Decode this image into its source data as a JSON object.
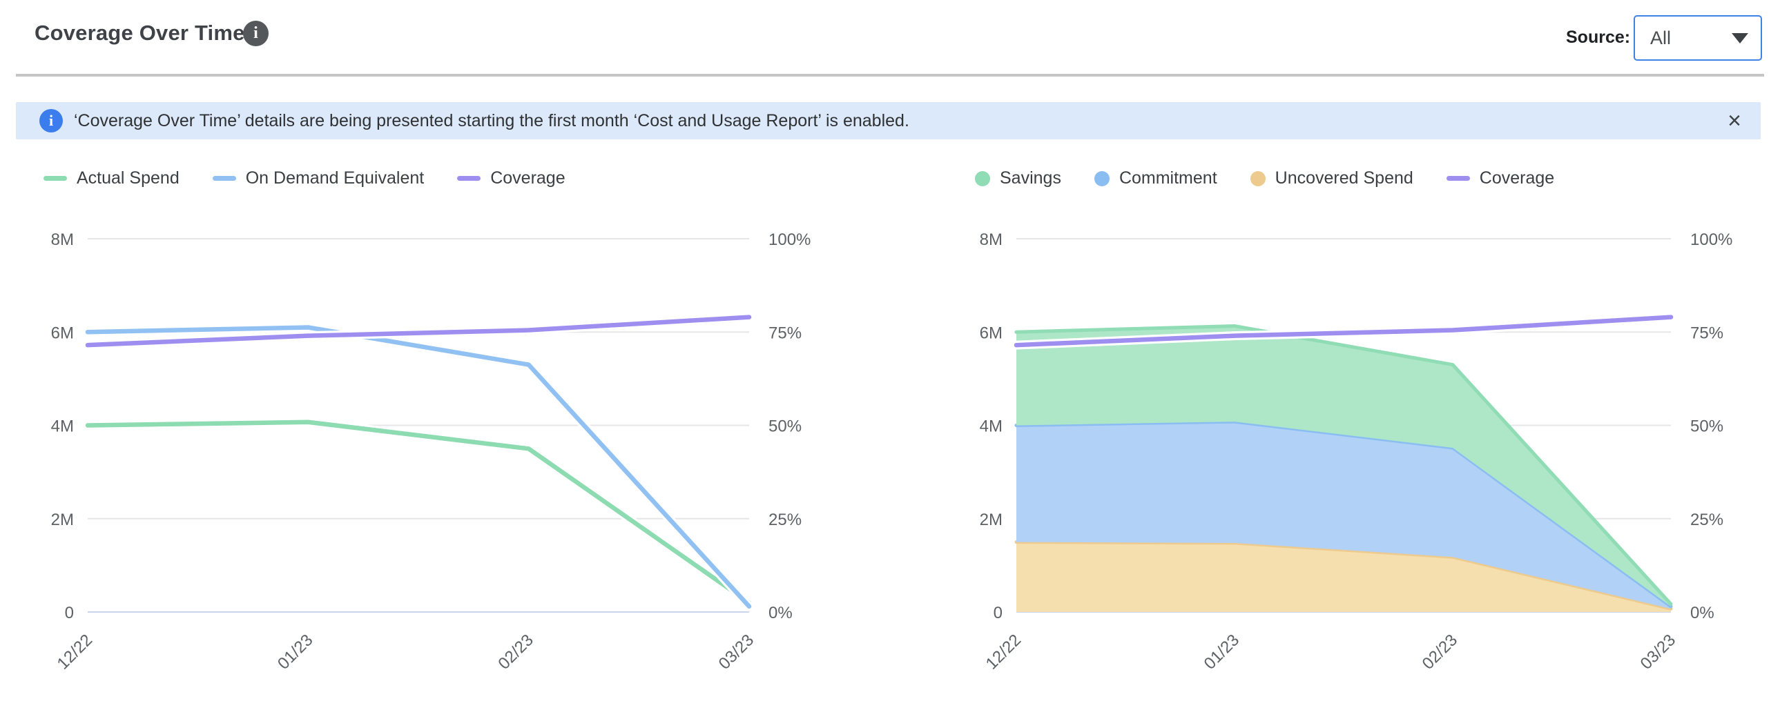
{
  "header": {
    "title": "Coverage Over Time",
    "info_glyph": "i",
    "source_label": "Source:",
    "source_value": "All"
  },
  "banner": {
    "icon_glyph": "i",
    "text": "‘Coverage Over Time’ details are being presented starting the first month ‘Cost and Usage Report’ is enabled.",
    "close_glyph": "×"
  },
  "ui_colors": {
    "banner_bg": "#dce9fb",
    "banner_icon": "#3b7ded",
    "dropdown_border": "#3f82e6",
    "divider": "#c5c5c5",
    "title_info_icon_bg": "#55585a",
    "gridline": "#e6e6e8",
    "zero_line": "#c9d5ed",
    "axis_text": "#5d6165"
  },
  "chart_data": [
    {
      "type": "line",
      "x": [
        "12/22",
        "01/23",
        "02/23",
        "03/23"
      ],
      "x_label_rotation": -45,
      "grid": "horizontal",
      "legend_position": "top-left",
      "left_axis": {
        "ticks": [
          "0",
          "2M",
          "4M",
          "6M",
          "8M"
        ],
        "range": [
          0,
          8
        ],
        "units": "millions"
      },
      "right_axis": {
        "ticks": [
          "0%",
          "25%",
          "50%",
          "75%",
          "100%"
        ],
        "range": [
          0,
          100
        ],
        "units": "percent"
      },
      "series": [
        {
          "name": "Actual Spend",
          "marker": "line",
          "axis": "left",
          "color": "#8cdbb1",
          "values": [
            4.0,
            4.07,
            3.5,
            0.2
          ]
        },
        {
          "name": "On Demand Equivalent",
          "marker": "line",
          "axis": "left",
          "color": "#90c1f2",
          "values": [
            6.0,
            6.1,
            5.3,
            0.12
          ]
        },
        {
          "name": "Coverage",
          "marker": "line",
          "axis": "right",
          "color": "#9d8ef0",
          "values": [
            71.5,
            74,
            75.5,
            79
          ]
        }
      ]
    },
    {
      "type": "area",
      "stacked": true,
      "x": [
        "12/22",
        "01/23",
        "02/23",
        "03/23"
      ],
      "x_label_rotation": -45,
      "grid": "horizontal",
      "legend_position": "top-left",
      "left_axis": {
        "ticks": [
          "0",
          "2M",
          "4M",
          "6M",
          "8M"
        ],
        "range": [
          0,
          8
        ],
        "units": "millions"
      },
      "right_axis": {
        "ticks": [
          "0%",
          "25%",
          "50%",
          "75%",
          "100%"
        ],
        "range": [
          0,
          100
        ],
        "units": "percent"
      },
      "series": [
        {
          "name": "Savings",
          "marker": "dot",
          "axis": "left",
          "stack": 3,
          "color": "#8fdcb5",
          "fill": "#aee6c8",
          "values": [
            2.0,
            2.05,
            1.78,
            0.05
          ]
        },
        {
          "name": "Commitment",
          "marker": "dot",
          "axis": "left",
          "stack": 2,
          "color": "#8abdf1",
          "fill": "#b1d1f7",
          "values": [
            2.5,
            2.6,
            2.34,
            0.05
          ]
        },
        {
          "name": "Uncovered Spend",
          "marker": "dot",
          "axis": "left",
          "stack": 1,
          "color": "#edca8d",
          "fill": "#f5dfae",
          "values": [
            1.5,
            1.48,
            1.18,
            0.07
          ]
        },
        {
          "name": "Coverage",
          "marker": "line",
          "axis": "right",
          "color": "#9d8ef0",
          "values": [
            71.5,
            74,
            75.5,
            79
          ]
        }
      ]
    }
  ]
}
